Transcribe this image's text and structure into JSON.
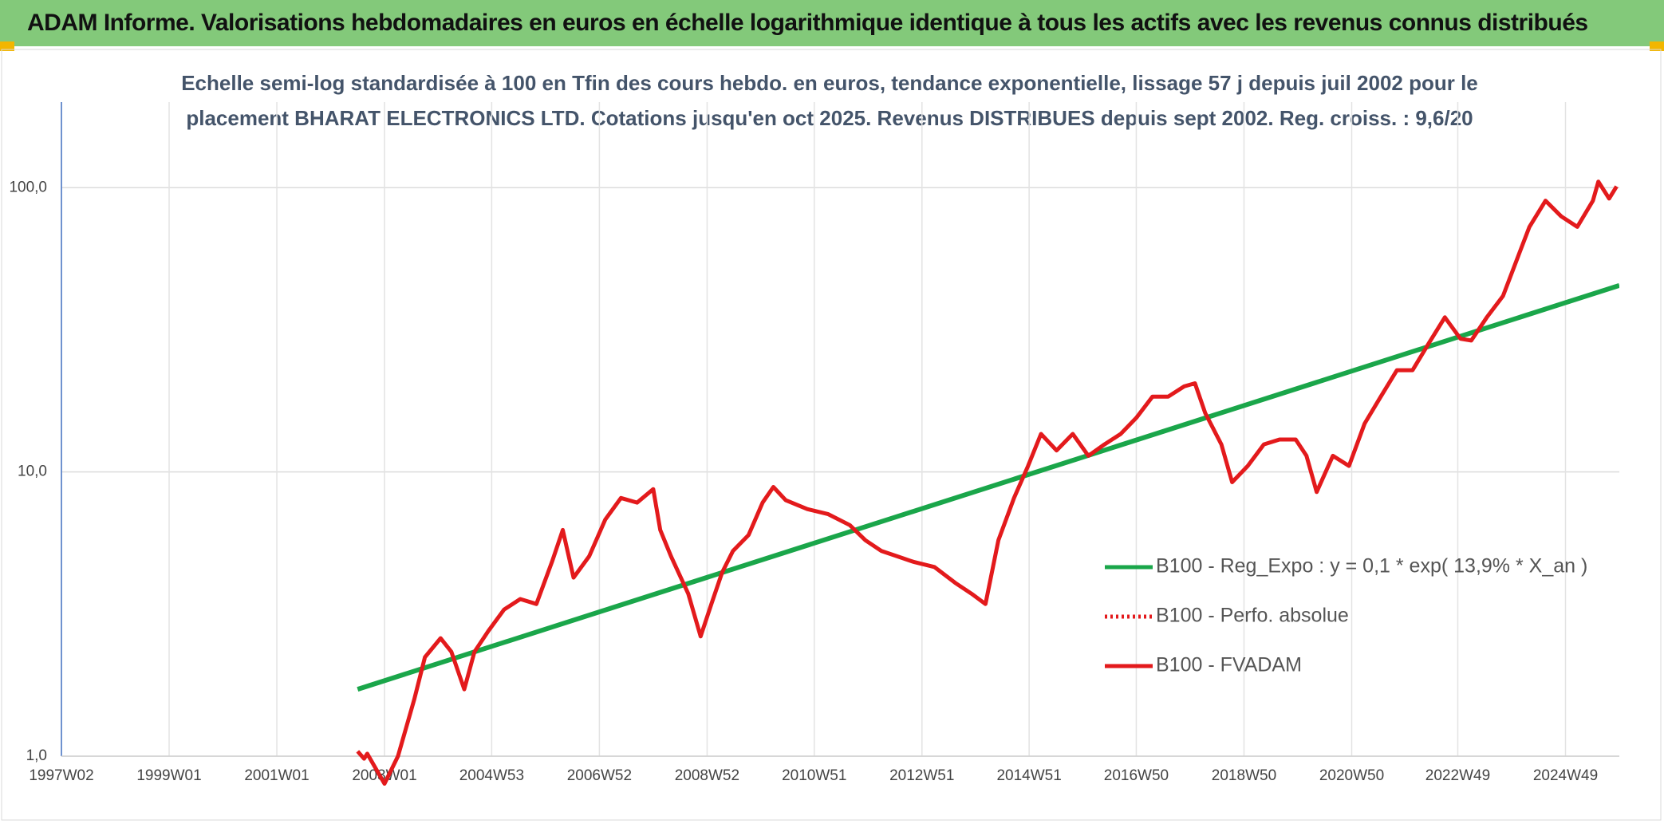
{
  "header": {
    "title": "ADAM Informe. Valorisations hebdomadaires en euros en échelle logarithmique identique à tous les actifs avec les revenus connus distribués"
  },
  "chart_data": {
    "type": "line",
    "subtitle": [
      "Echelle semi-log standardisée à 100 en Tfin des cours hebdo. en euros, tendance exponentielle, lissage 57 j depuis juil 2002 pour le",
      "placement BHARAT ELECTRONICS LTD. Cotations jusqu'en oct 2025. Revenus DISTRIBUES depuis sept 2002. Reg. croiss. : 9,6/20"
    ],
    "log_scale": true,
    "grid": true,
    "legend": "right",
    "xlim": [
      1997,
      2025.93
    ],
    "ylim": [
      1,
      200
    ],
    "xticks": [
      {
        "value": 1997.0,
        "label": "1997W02"
      },
      {
        "value": 1999.0,
        "label": "1999W01"
      },
      {
        "value": 2001.0,
        "label": "2001W01"
      },
      {
        "value": 2003.0,
        "label": "2003W01"
      },
      {
        "value": 2004.99,
        "label": "2004W53"
      },
      {
        "value": 2006.99,
        "label": "2006W52"
      },
      {
        "value": 2008.99,
        "label": "2008W52"
      },
      {
        "value": 2010.98,
        "label": "2010W51"
      },
      {
        "value": 2012.98,
        "label": "2012W51"
      },
      {
        "value": 2014.97,
        "label": "2014W51"
      },
      {
        "value": 2016.96,
        "label": "2016W50"
      },
      {
        "value": 2018.96,
        "label": "2018W50"
      },
      {
        "value": 2020.96,
        "label": "2020W50"
      },
      {
        "value": 2022.93,
        "label": "2022W49"
      },
      {
        "value": 2024.93,
        "label": "2024W49"
      }
    ],
    "yticks": [
      {
        "value": 1,
        "label": "1,0"
      },
      {
        "value": 10,
        "label": "10,0"
      },
      {
        "value": 100,
        "label": "100,0"
      }
    ],
    "series": [
      {
        "name": "B100 - Reg_Expo : y = 0,1 * exp( 13,9% *  X_an )",
        "color": "#1aa64a",
        "style": "solid",
        "x": [
          2002.5,
          2025.93
        ],
        "values": [
          1.72,
          45.3
        ]
      },
      {
        "name": "B100 - Perfo. absolue",
        "color": "#e31a1c",
        "style": "dotted",
        "x": [],
        "values": []
      },
      {
        "name": "B100 - FVADAM",
        "color": "#e31a1c",
        "style": "solid",
        "x": [
          2002.5,
          2002.62,
          2002.68,
          2003.0,
          2003.25,
          2003.55,
          2003.75,
          2004.04,
          2004.24,
          2004.48,
          2004.67,
          2004.93,
          2005.22,
          2005.52,
          2005.82,
          2006.11,
          2006.31,
          2006.51,
          2006.8,
          2007.1,
          2007.39,
          2007.69,
          2007.99,
          2008.12,
          2008.32,
          2008.64,
          2008.87,
          2009.07,
          2009.27,
          2009.47,
          2009.76,
          2010.02,
          2010.22,
          2010.45,
          2010.85,
          2011.24,
          2011.64,
          2011.93,
          2012.23,
          2012.52,
          2012.82,
          2013.21,
          2013.6,
          2013.9,
          2014.16,
          2014.4,
          2014.69,
          2014.95,
          2015.19,
          2015.48,
          2015.78,
          2016.07,
          2016.37,
          2016.67,
          2016.96,
          2017.26,
          2017.55,
          2017.85,
          2018.05,
          2018.24,
          2018.54,
          2018.74,
          2019.03,
          2019.33,
          2019.62,
          2019.92,
          2020.12,
          2020.31,
          2020.61,
          2020.91,
          2021.2,
          2021.5,
          2021.8,
          2022.09,
          2022.39,
          2022.69,
          2022.98,
          2023.18,
          2023.47,
          2023.77,
          2024.07,
          2024.26,
          2024.56,
          2024.85,
          2025.15,
          2025.44,
          2025.54,
          2025.74,
          2025.88
        ],
        "values": [
          1.04,
          0.98,
          1.02,
          0.8,
          1.0,
          1.58,
          2.23,
          2.6,
          2.33,
          1.72,
          2.33,
          2.76,
          3.28,
          3.57,
          3.43,
          4.83,
          6.25,
          4.25,
          5.05,
          6.8,
          8.1,
          7.8,
          8.7,
          6.25,
          5.05,
          3.73,
          2.64,
          3.43,
          4.43,
          5.27,
          6.0,
          7.8,
          8.85,
          7.95,
          7.4,
          7.1,
          6.5,
          5.75,
          5.27,
          5.05,
          4.83,
          4.63,
          4.07,
          3.73,
          3.43,
          5.75,
          8.1,
          10.5,
          13.6,
          11.9,
          13.6,
          11.4,
          12.5,
          13.6,
          15.5,
          18.4,
          18.4,
          20.0,
          20.5,
          16.1,
          12.5,
          9.2,
          10.5,
          12.5,
          13.0,
          13.0,
          11.4,
          8.5,
          11.4,
          10.5,
          14.8,
          18.4,
          22.8,
          22.8,
          28.3,
          35.0,
          29.4,
          29.0,
          35.0,
          41.6,
          58.6,
          72.8,
          90.0,
          79.3,
          72.8,
          90.0,
          105,
          91.6,
          101
        ]
      }
    ]
  }
}
